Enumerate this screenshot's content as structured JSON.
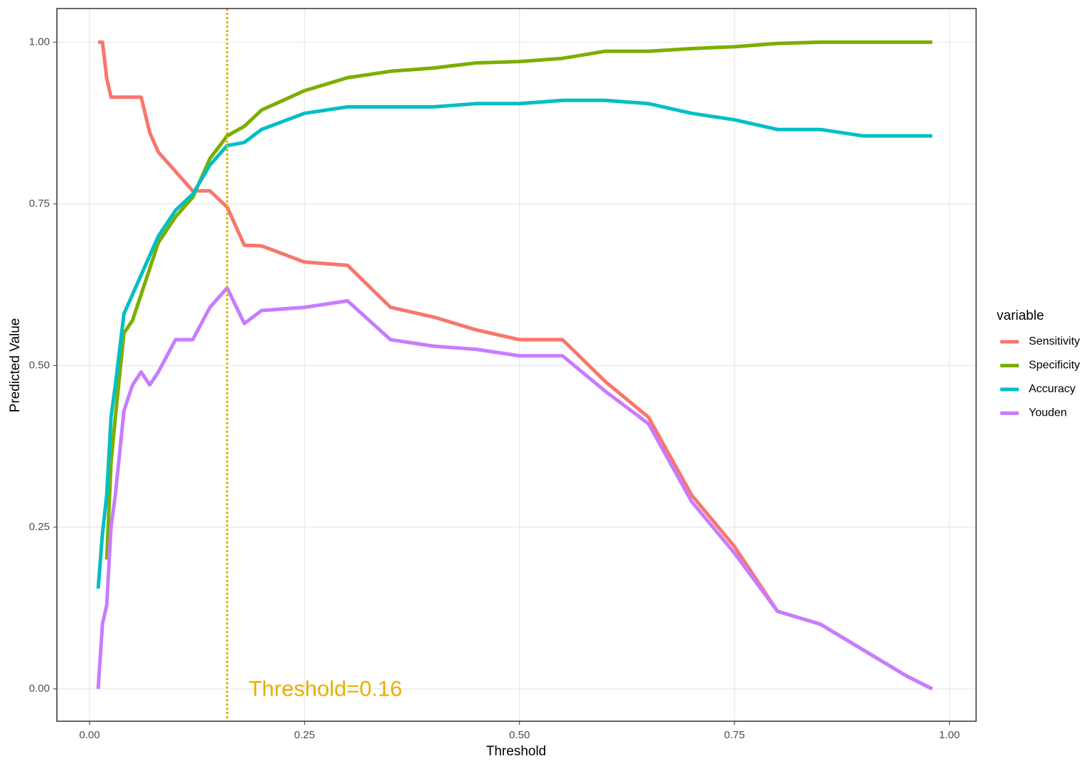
{
  "chart_data": {
    "type": "line",
    "x_label": "Threshold",
    "y_label": "Predicted Value",
    "legend_title": "variable",
    "legend": "right",
    "x": [
      0.01,
      0.015,
      0.02,
      0.025,
      0.03,
      0.04,
      0.05,
      0.06,
      0.07,
      0.08,
      0.1,
      0.12,
      0.14,
      0.16,
      0.18,
      0.2,
      0.25,
      0.3,
      0.35,
      0.4,
      0.45,
      0.5,
      0.55,
      0.6,
      0.65,
      0.7,
      0.75,
      0.8,
      0.85,
      0.9,
      0.95,
      0.98
    ],
    "series": [
      {
        "name": "Sensitivity",
        "color": "#F8766D",
        "values": [
          1.0,
          1.0,
          0.944,
          0.915,
          0.915,
          0.915,
          0.915,
          0.915,
          0.86,
          0.83,
          0.8,
          0.77,
          0.77,
          0.745,
          0.686,
          0.685,
          0.66,
          0.655,
          0.59,
          0.575,
          0.555,
          0.54,
          0.54,
          0.475,
          0.42,
          0.3,
          0.22,
          0.12,
          0.1,
          0.06,
          0.02,
          0.0
        ]
      },
      {
        "name": "Specificity",
        "color": "#7CAE00",
        "values": [
          null,
          null,
          0.2,
          0.35,
          0.42,
          0.55,
          0.57,
          0.61,
          0.65,
          0.69,
          0.73,
          0.76,
          0.82,
          0.855,
          0.87,
          0.895,
          0.925,
          0.945,
          0.955,
          0.96,
          0.968,
          0.97,
          0.975,
          0.986,
          0.986,
          0.99,
          0.993,
          0.998,
          1.0,
          1.0,
          1.0,
          1.0
        ]
      },
      {
        "name": "Accuracy",
        "color": "#00BFC4",
        "values": [
          0.155,
          0.24,
          0.3,
          0.42,
          0.47,
          0.58,
          0.61,
          0.64,
          0.67,
          0.7,
          0.74,
          0.765,
          0.81,
          0.84,
          0.845,
          0.865,
          0.89,
          0.9,
          0.9,
          0.9,
          0.905,
          0.905,
          0.91,
          0.91,
          0.905,
          0.89,
          0.88,
          0.865,
          0.865,
          0.855,
          0.855,
          0.855
        ]
      },
      {
        "name": "Youden",
        "color": "#C77CFF",
        "values": [
          0.0,
          0.1,
          0.13,
          0.25,
          0.3,
          0.43,
          0.47,
          0.49,
          0.47,
          0.49,
          0.54,
          0.54,
          0.59,
          0.62,
          0.565,
          0.585,
          0.59,
          0.6,
          0.54,
          0.53,
          0.525,
          0.515,
          0.515,
          0.46,
          0.41,
          0.29,
          0.21,
          0.12,
          0.1,
          0.06,
          0.02,
          0.0
        ]
      }
    ],
    "vline": {
      "value": 0.16,
      "color": "#E6B000",
      "label": "Threshold=0.16"
    },
    "xlim": [
      -0.038,
      1.031
    ],
    "ylim": [
      -0.05,
      1.052
    ],
    "xticks": [
      {
        "value": 0,
        "label": "0.00"
      },
      {
        "value": 0.25,
        "label": "0.25"
      },
      {
        "value": 0.5,
        "label": "0.50"
      },
      {
        "value": 0.75,
        "label": "0.75"
      },
      {
        "value": 1,
        "label": "1.00"
      }
    ],
    "yticks": [
      {
        "value": 0,
        "label": "0.00"
      },
      {
        "value": 0.25,
        "label": "0.25"
      },
      {
        "value": 0.5,
        "label": "0.50"
      },
      {
        "value": 0.75,
        "label": "0.75"
      },
      {
        "value": 1,
        "label": "1.00"
      }
    ],
    "grid": true
  }
}
